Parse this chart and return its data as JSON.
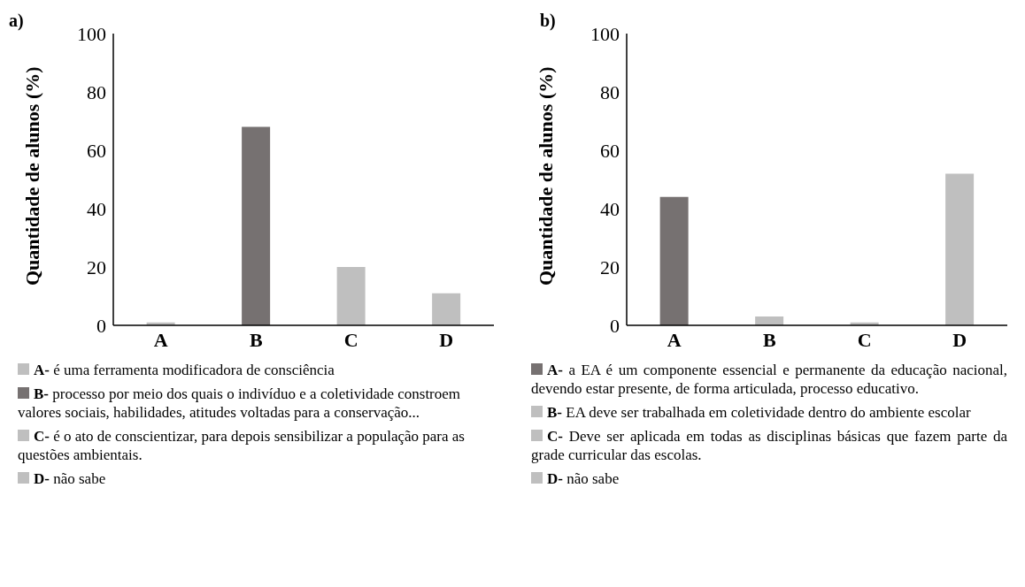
{
  "chart_data": [
    {
      "type": "bar",
      "title": "a)",
      "ylabel": "Quantidade de alunos (%)",
      "categories": [
        "A",
        "B",
        "C",
        "D"
      ],
      "values": [
        1,
        68,
        20,
        11
      ],
      "colors": [
        "#bfbfbf",
        "#767171",
        "#bfbfbf",
        "#bfbfbf"
      ],
      "ylim": [
        0,
        100
      ],
      "yticks": [
        0,
        20,
        40,
        60,
        80,
        100
      ],
      "grid": false,
      "legend": false,
      "annotations": [
        "A- é uma ferramenta modificadora de consciência",
        "B- processo por meio dos quais o indivíduo e a coletividade constroem valores sociais, habilidades, atitudes voltadas para a conservação...",
        "C- é o ato de conscientizar, para depois sensibilizar a população para as questões ambientais.",
        "D- não sabe"
      ]
    },
    {
      "type": "bar",
      "title": "b)",
      "ylabel": "Quantidade de alunos (%)",
      "categories": [
        "A",
        "B",
        "C",
        "D"
      ],
      "values": [
        44,
        3,
        1,
        52
      ],
      "colors": [
        "#767171",
        "#bfbfbf",
        "#bfbfbf",
        "#bfbfbf"
      ],
      "ylim": [
        0,
        100
      ],
      "yticks": [
        0,
        20,
        40,
        60,
        80,
        100
      ],
      "grid": false,
      "legend": false,
      "annotations": [
        "A- a EA é um componente essencial e permanente da educação nacional, devendo estar presente, de forma articulada, processo educativo.",
        "B- EA deve ser trabalhada em coletividade dentro do ambiente escolar",
        "C- Deve ser aplicada em todas as disciplinas básicas que fazem parte da grade curricular das escolas.",
        "D- não sabe"
      ]
    }
  ]
}
